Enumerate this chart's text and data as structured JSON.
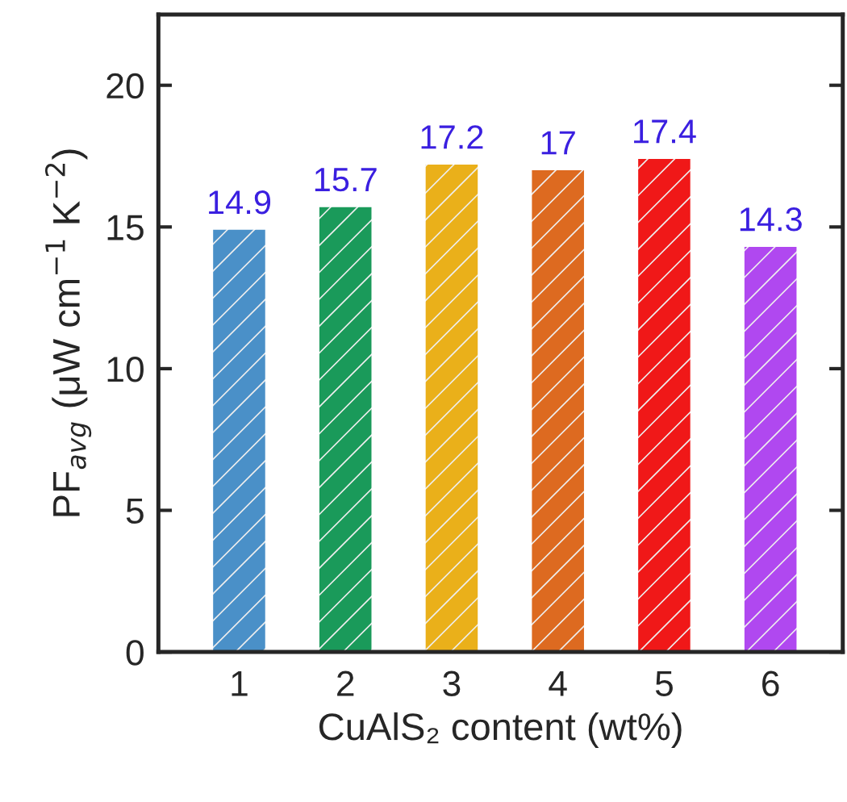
{
  "chart_data": {
    "type": "bar",
    "xlabel": "CuAlS₂ content (wt%)",
    "ylabel": "PF$_{avg}$ (μW cm$^{−1}$ K$^{−2}$)",
    "categories": [
      "1",
      "2",
      "3",
      "4",
      "5",
      "6"
    ],
    "values": [
      14.9,
      15.7,
      17.2,
      17,
      17.4,
      14.3
    ],
    "colors": [
      "#4a90c8",
      "#1a9a5a",
      "#eab01a",
      "#dd6a20",
      "#f01818",
      "#b048f0"
    ],
    "value_labels": [
      "14.9",
      "15.7",
      "17.2",
      "17",
      "17.4",
      "14.3"
    ],
    "ylim": [
      0,
      22.5
    ],
    "yticks": [
      0,
      5,
      10,
      15,
      20
    ],
    "grid": false,
    "legend": false
  }
}
